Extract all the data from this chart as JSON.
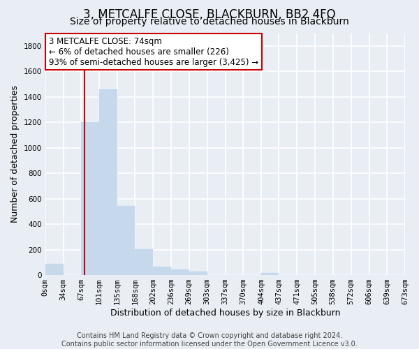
{
  "title": "3, METCALFE CLOSE, BLACKBURN, BB2 4FQ",
  "subtitle": "Size of property relative to detached houses in Blackburn",
  "xlabel": "Distribution of detached houses by size in Blackburn",
  "ylabel": "Number of detached properties",
  "bar_color": "#c5d8ec",
  "annotation_box_text": "3 METCALFE CLOSE: 74sqm\n← 6% of detached houses are smaller (226)\n93% of semi-detached houses are larger (3,425) →",
  "annotation_box_color": "white",
  "annotation_box_edge": "#cc0000",
  "redline_x": 74,
  "bin_edges": [
    0,
    34,
    67,
    101,
    135,
    168,
    202,
    236,
    269,
    303,
    337,
    370,
    404,
    437,
    471,
    505,
    538,
    572,
    606,
    639,
    673
  ],
  "bar_heights": [
    90,
    0,
    1200,
    1460,
    545,
    205,
    65,
    45,
    30,
    0,
    0,
    0,
    15,
    0,
    0,
    0,
    0,
    0,
    0,
    0
  ],
  "tick_labels": [
    "0sqm",
    "34sqm",
    "67sqm",
    "101sqm",
    "135sqm",
    "168sqm",
    "202sqm",
    "236sqm",
    "269sqm",
    "303sqm",
    "337sqm",
    "370sqm",
    "404sqm",
    "437sqm",
    "471sqm",
    "505sqm",
    "538sqm",
    "572sqm",
    "606sqm",
    "639sqm",
    "673sqm"
  ],
  "ylim": [
    0,
    1900
  ],
  "yticks": [
    0,
    200,
    400,
    600,
    800,
    1000,
    1200,
    1400,
    1600,
    1800
  ],
  "footer_text": "Contains HM Land Registry data © Crown copyright and database right 2024.\nContains public sector information licensed under the Open Government Licence v3.0.",
  "background_color": "#e8eef4",
  "grid_color": "white",
  "title_fontsize": 12,
  "subtitle_fontsize": 10,
  "label_fontsize": 9,
  "tick_fontsize": 7.5,
  "footer_fontsize": 7
}
